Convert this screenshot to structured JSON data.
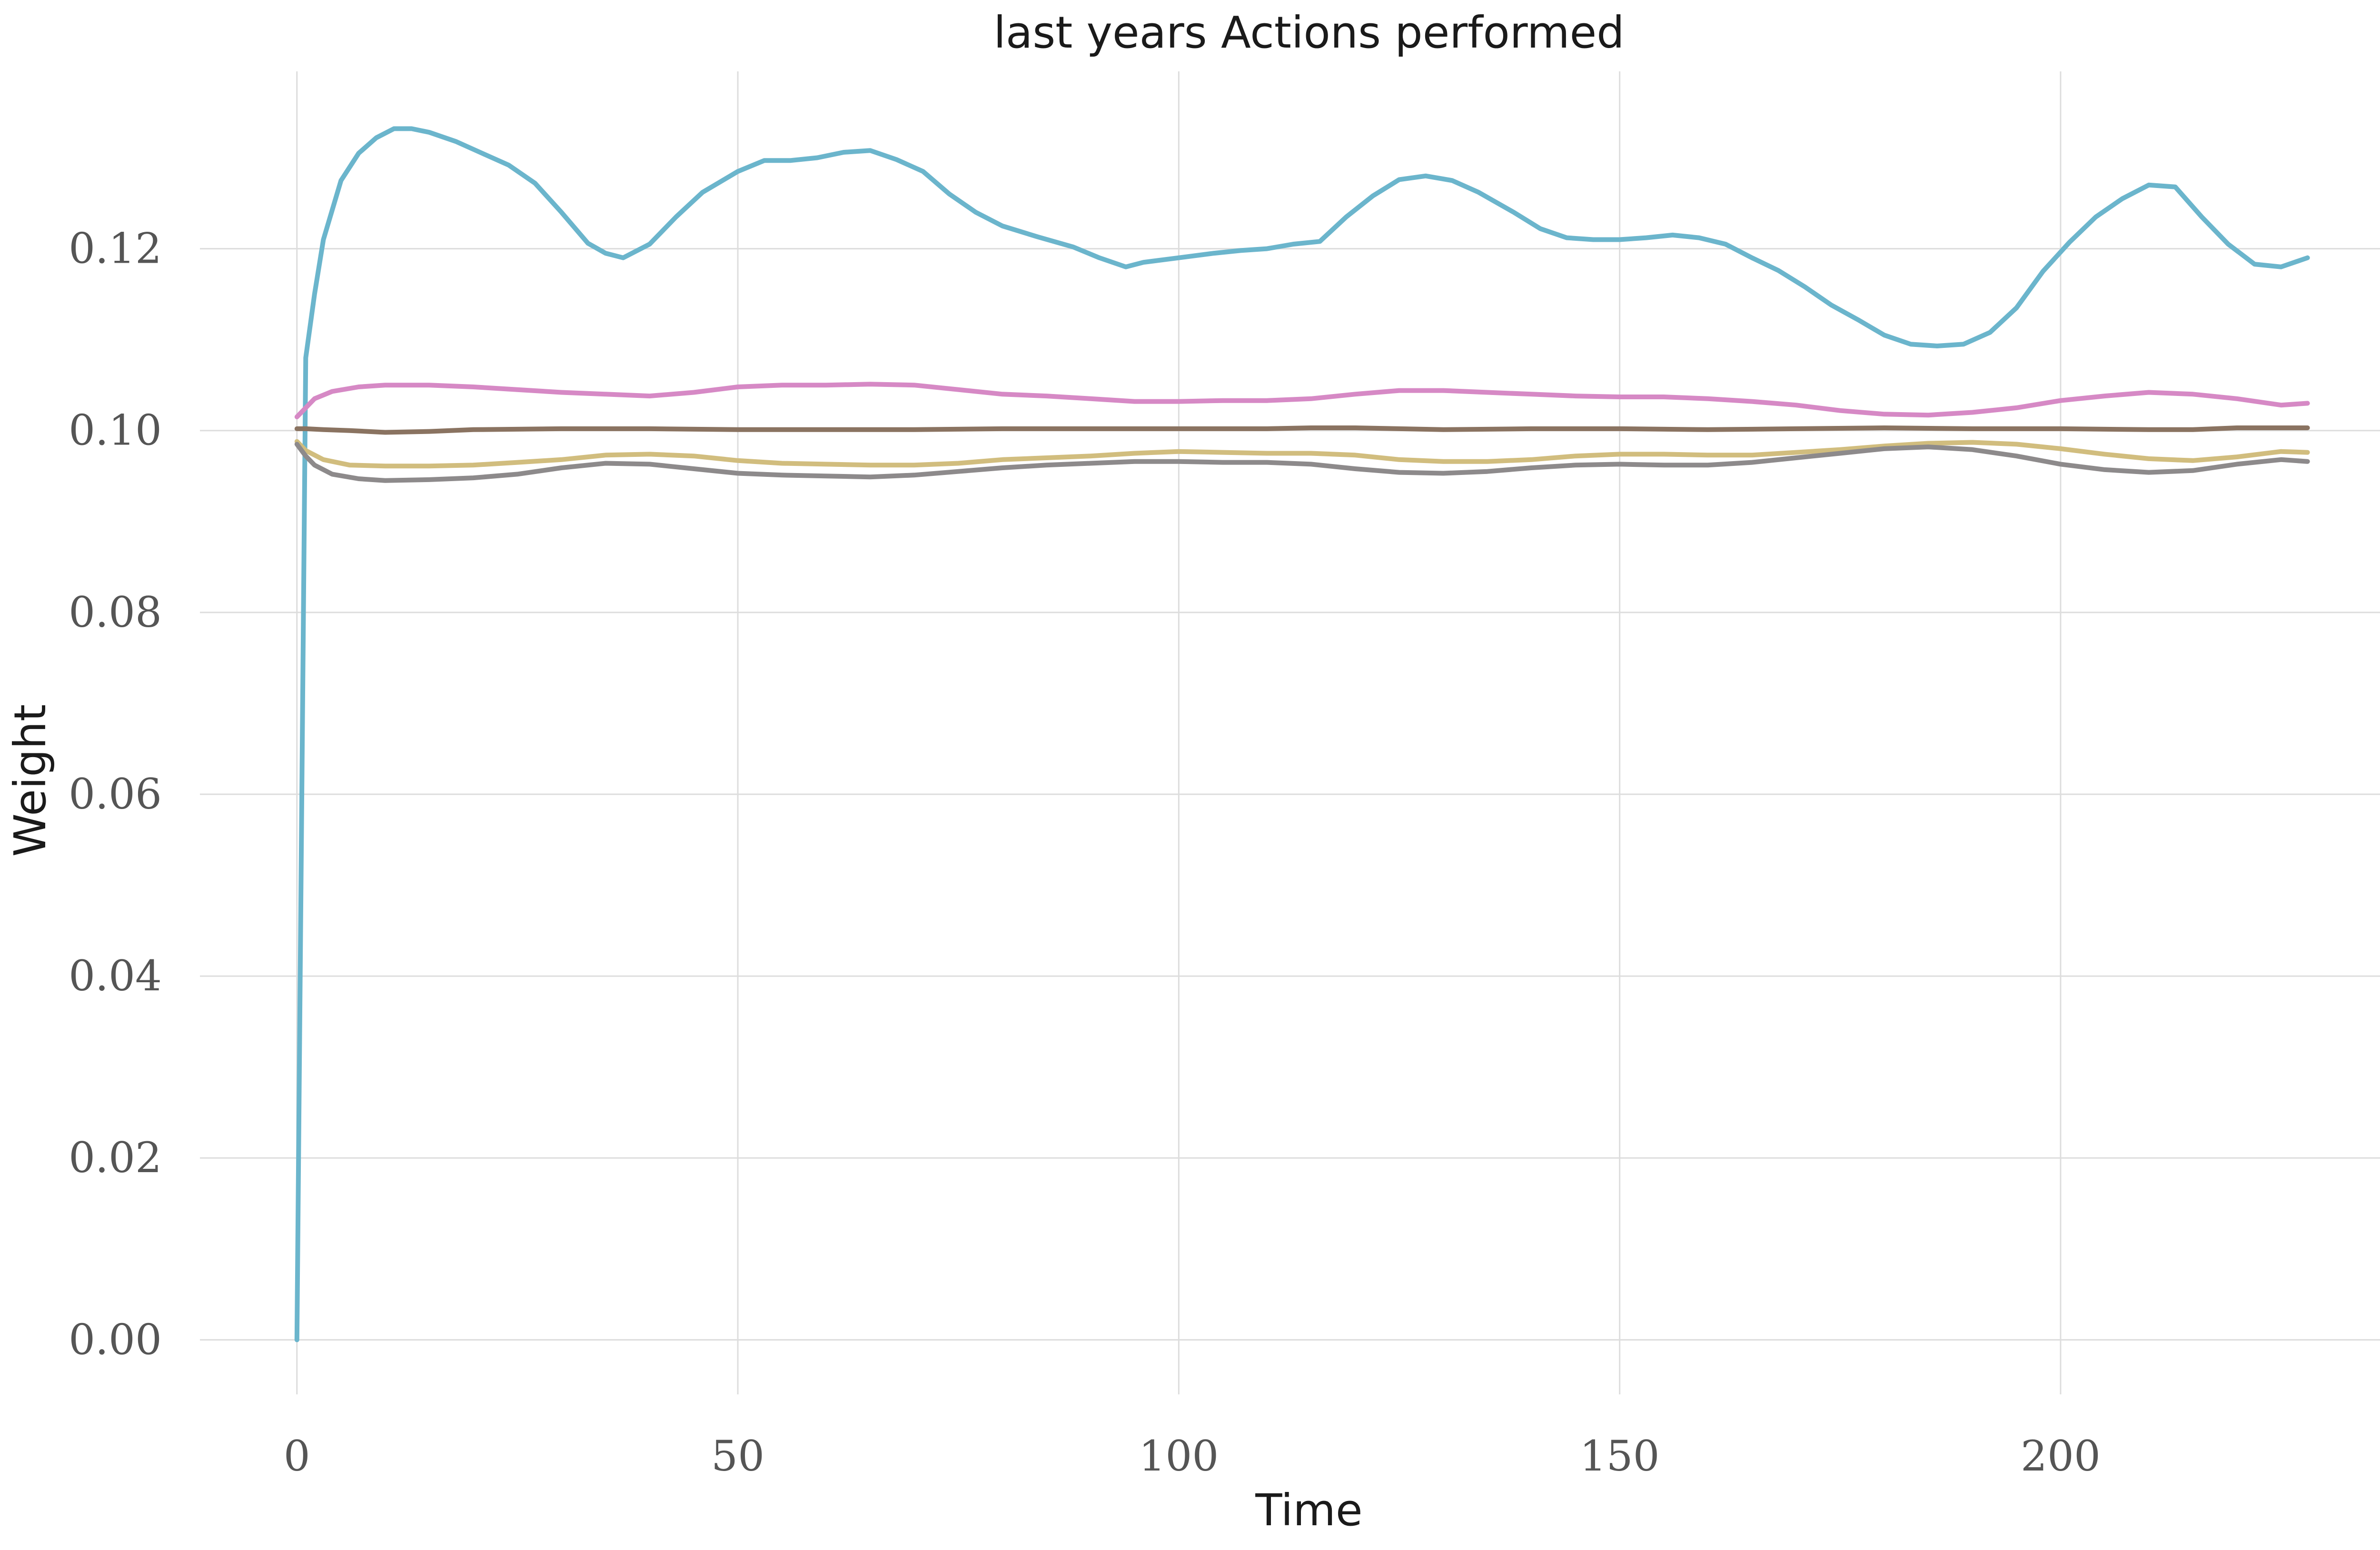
{
  "chart_data": {
    "type": "line",
    "title": "last years Actions performed",
    "xlabel": "Time",
    "ylabel": "Weight",
    "xlim": [
      -11,
      240
    ],
    "ylim": [
      -0.006,
      0.1395
    ],
    "xticks": [
      0,
      50,
      100,
      150,
      200
    ],
    "xtick_labels": [
      "0",
      "50",
      "100",
      "150",
      "200"
    ],
    "yticks": [
      0.0,
      0.02,
      0.04,
      0.06,
      0.08,
      0.1,
      0.12
    ],
    "ytick_labels": [
      "0.00",
      "0.02",
      "0.04",
      "0.06",
      "0.08",
      "0.10",
      "0.12"
    ],
    "grid": true,
    "series": [
      {
        "color": "#6bb5cc",
        "x": [
          0,
          1,
          2,
          3,
          5,
          7,
          9,
          11,
          13,
          15,
          18,
          21,
          24,
          27,
          30,
          33,
          35,
          37,
          40,
          43,
          46,
          50,
          53,
          56,
          59,
          62,
          65,
          68,
          71,
          74,
          77,
          80,
          84,
          88,
          91,
          94,
          96,
          100,
          104,
          107,
          110,
          113,
          116,
          119,
          122,
          125,
          128,
          131,
          134,
          138,
          141,
          144,
          147,
          150,
          153,
          156,
          159,
          162,
          165,
          168,
          171,
          174,
          177,
          180,
          183,
          186,
          189,
          192,
          195,
          198,
          201,
          204,
          207,
          210,
          213,
          216,
          219,
          222,
          225,
          228
        ],
        "y": [
          0.0,
          0.108,
          0.115,
          0.121,
          0.1275,
          0.1305,
          0.1322,
          0.1332,
          0.1332,
          0.1328,
          0.1318,
          0.1305,
          0.1292,
          0.1272,
          0.124,
          0.1206,
          0.1195,
          0.119,
          0.1205,
          0.1235,
          0.1262,
          0.1285,
          0.1297,
          0.1297,
          0.13,
          0.1306,
          0.1308,
          0.1298,
          0.1285,
          0.126,
          0.124,
          0.1225,
          0.1213,
          0.1202,
          0.119,
          0.118,
          0.1185,
          0.119,
          0.1195,
          0.1198,
          0.12,
          0.1205,
          0.1208,
          0.1235,
          0.1258,
          0.1276,
          0.128,
          0.1275,
          0.1262,
          0.124,
          0.1222,
          0.1212,
          0.121,
          0.121,
          0.1212,
          0.1215,
          0.1212,
          0.1205,
          0.119,
          0.1176,
          0.1158,
          0.1138,
          0.1122,
          0.1105,
          0.1095,
          0.1093,
          0.1095,
          0.1108,
          0.1135,
          0.1175,
          0.1207,
          0.1235,
          0.1255,
          0.127,
          0.1268,
          0.1235,
          0.1205,
          0.1183,
          0.118,
          0.119
        ]
      },
      {
        "color": "#d689c5",
        "x": [
          0,
          1,
          2,
          4,
          7,
          10,
          15,
          20,
          25,
          30,
          35,
          40,
          45,
          50,
          55,
          60,
          65,
          70,
          75,
          80,
          85,
          90,
          95,
          100,
          105,
          110,
          115,
          120,
          125,
          130,
          135,
          140,
          145,
          150,
          155,
          160,
          165,
          170,
          175,
          180,
          185,
          190,
          195,
          200,
          205,
          210,
          215,
          220,
          225,
          228
        ],
        "y": [
          0.1015,
          0.1025,
          0.1035,
          0.1043,
          0.1048,
          0.105,
          0.105,
          0.1048,
          0.1045,
          0.1042,
          0.104,
          0.1038,
          0.1042,
          0.1048,
          0.105,
          0.105,
          0.1051,
          0.105,
          0.1045,
          0.104,
          0.1038,
          0.1035,
          0.1032,
          0.1032,
          0.1033,
          0.1033,
          0.1035,
          0.104,
          0.1044,
          0.1044,
          0.1042,
          0.104,
          0.1038,
          0.1037,
          0.1037,
          0.1035,
          0.1032,
          0.1028,
          0.1022,
          0.1018,
          0.1017,
          0.102,
          0.1025,
          0.1033,
          0.1038,
          0.1042,
          0.104,
          0.1035,
          0.1028,
          0.103
        ]
      },
      {
        "color": "#8a7361",
        "x": [
          0,
          1,
          3,
          6,
          10,
          15,
          20,
          30,
          40,
          50,
          60,
          70,
          80,
          90,
          100,
          110,
          115,
          120,
          130,
          140,
          150,
          160,
          170,
          180,
          190,
          200,
          210,
          215,
          220,
          228
        ],
        "y": [
          0.1002,
          0.1002,
          0.1001,
          0.1,
          0.0998,
          0.0999,
          0.1001,
          0.1002,
          0.1002,
          0.1001,
          0.1001,
          0.1001,
          0.1002,
          0.1002,
          0.1002,
          0.1002,
          0.1003,
          0.1003,
          0.1001,
          0.1002,
          0.1002,
          0.1001,
          0.1002,
          0.1003,
          0.1002,
          0.1002,
          0.1001,
          0.1001,
          0.1003,
          0.1003
        ]
      },
      {
        "color": "#d1bd7e",
        "x": [
          0,
          1,
          3,
          6,
          10,
          15,
          20,
          25,
          30,
          35,
          40,
          45,
          50,
          55,
          60,
          65,
          70,
          75,
          80,
          85,
          90,
          95,
          100,
          105,
          110,
          115,
          120,
          125,
          130,
          135,
          140,
          145,
          150,
          155,
          160,
          165,
          170,
          175,
          180,
          185,
          190,
          195,
          200,
          205,
          210,
          215,
          220,
          225,
          228
        ],
        "y": [
          0.0988,
          0.0978,
          0.0968,
          0.0962,
          0.0961,
          0.0961,
          0.0962,
          0.0965,
          0.0968,
          0.0973,
          0.0974,
          0.0972,
          0.0967,
          0.0964,
          0.0963,
          0.0962,
          0.0962,
          0.0964,
          0.0968,
          0.097,
          0.0972,
          0.0975,
          0.0977,
          0.0976,
          0.0975,
          0.0975,
          0.0973,
          0.0968,
          0.0966,
          0.0966,
          0.0968,
          0.0972,
          0.0974,
          0.0974,
          0.0973,
          0.0973,
          0.0976,
          0.0979,
          0.0983,
          0.0986,
          0.0987,
          0.0985,
          0.098,
          0.0974,
          0.0969,
          0.0967,
          0.0971,
          0.0977,
          0.0976
        ]
      },
      {
        "color": "#8d8a8b",
        "x": [
          0,
          1,
          2,
          4,
          7,
          10,
          15,
          20,
          25,
          30,
          35,
          40,
          45,
          50,
          55,
          60,
          65,
          70,
          75,
          80,
          85,
          90,
          95,
          100,
          105,
          110,
          115,
          120,
          125,
          130,
          135,
          140,
          145,
          150,
          155,
          160,
          165,
          170,
          175,
          180,
          185,
          190,
          195,
          200,
          205,
          210,
          215,
          220,
          225,
          228
        ],
        "y": [
          0.0985,
          0.0972,
          0.0962,
          0.0952,
          0.0947,
          0.0945,
          0.0946,
          0.0948,
          0.0952,
          0.0959,
          0.0964,
          0.0963,
          0.0958,
          0.0953,
          0.0951,
          0.095,
          0.0949,
          0.0951,
          0.0955,
          0.0959,
          0.0962,
          0.0964,
          0.0966,
          0.0966,
          0.0965,
          0.0965,
          0.0963,
          0.0958,
          0.0954,
          0.0953,
          0.0955,
          0.0959,
          0.0962,
          0.0963,
          0.0962,
          0.0962,
          0.0965,
          0.097,
          0.0975,
          0.098,
          0.0982,
          0.0979,
          0.0972,
          0.0963,
          0.0957,
          0.0954,
          0.0956,
          0.0963,
          0.0968,
          0.0966
        ]
      }
    ]
  }
}
